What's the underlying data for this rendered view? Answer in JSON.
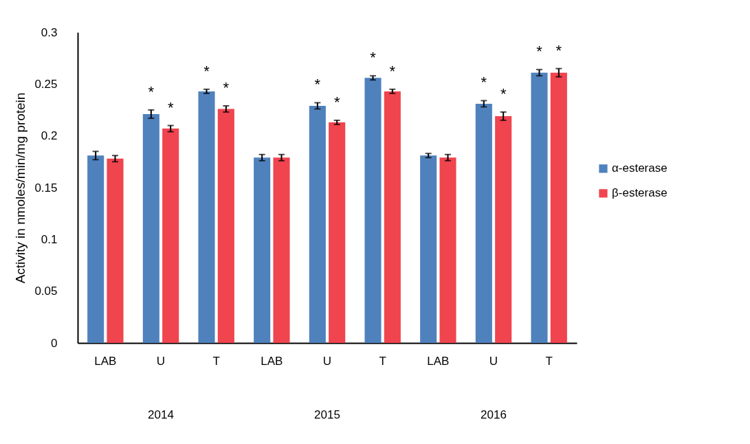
{
  "chart_data": {
    "type": "bar",
    "ylabel": "Activity in nmoles/min/mg protein",
    "categories": [
      "LAB",
      "U",
      "T",
      "LAB",
      "U",
      "T",
      "LAB",
      "U",
      "T"
    ],
    "annotations": [
      "2014",
      "2015",
      "2016"
    ],
    "ylim": [
      0,
      0.3
    ],
    "yticks": [
      0,
      0.05,
      0.1,
      0.15,
      0.2,
      0.25,
      0.3
    ],
    "grid": false,
    "legend": "right",
    "series": [
      {
        "name": "α-esterase",
        "color": "#4f81bd",
        "values": [
          0.181,
          0.221,
          0.243,
          0.179,
          0.229,
          0.256,
          0.181,
          0.231,
          0.261
        ],
        "errors": [
          0.004,
          0.004,
          0.002,
          0.003,
          0.003,
          0.002,
          0.002,
          0.003,
          0.003
        ],
        "value_labels": [
          null,
          "*",
          "*",
          null,
          "*",
          "*",
          null,
          "*",
          "*"
        ]
      },
      {
        "name": "β-esterase",
        "color": "#f0444f",
        "values": [
          0.178,
          0.207,
          0.226,
          0.179,
          0.213,
          0.243,
          0.179,
          0.219,
          0.261
        ],
        "errors": [
          0.003,
          0.003,
          0.003,
          0.003,
          0.002,
          0.002,
          0.003,
          0.004,
          0.004
        ],
        "value_labels": [
          null,
          "*",
          "*",
          null,
          "*",
          "*",
          null,
          "*",
          "*"
        ]
      }
    ]
  }
}
